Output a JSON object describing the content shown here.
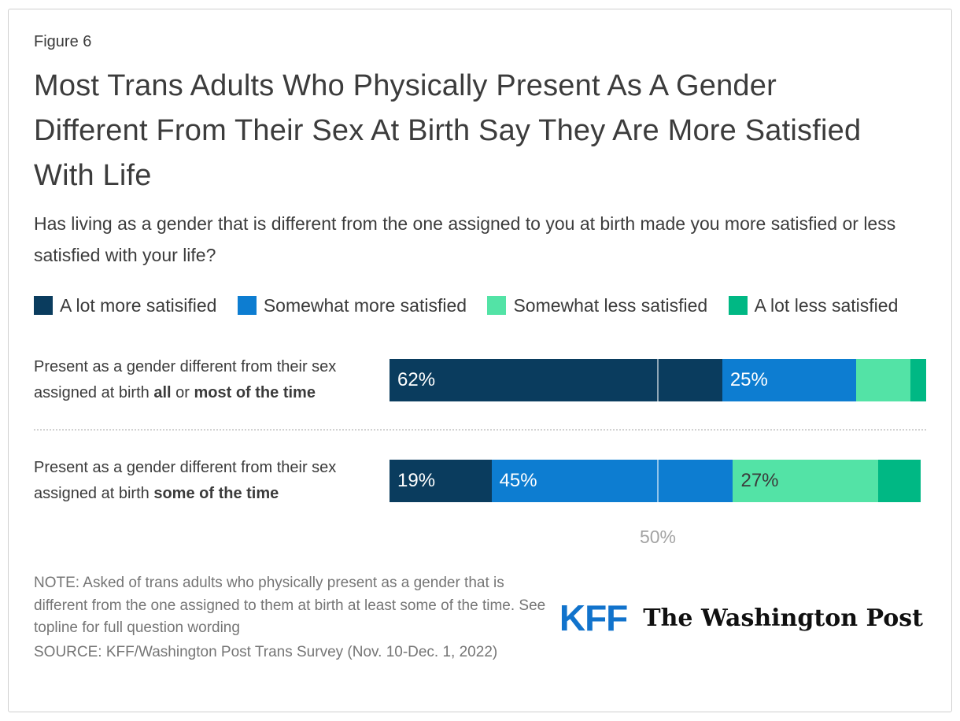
{
  "figure_label": "Figure 6",
  "title": "Most Trans Adults Who Physically Present As A Gender Different From Their Sex At Birth Say They Are More Satisfied With Life",
  "subtitle": "Has living as a gender that is different from the one assigned to you at birth made you more satisfied or less satisfied with your life?",
  "colors": {
    "a_lot_more": "#0a3c5e",
    "somewhat_more": "#0d7dd1",
    "somewhat_less": "#53e3a6",
    "a_lot_less": "#00b884",
    "kff_blue": "#1173cc",
    "gridline": "rgba(255,255,255,0.55)",
    "axis_label_gray": "#a3a3a3",
    "note_gray": "#757575"
  },
  "legend": [
    {
      "label": "A lot more satisified",
      "color": "#0a3c5e"
    },
    {
      "label": "Somewhat more satisfied",
      "color": "#0d7dd1"
    },
    {
      "label": "Somewhat less satisfied",
      "color": "#53e3a6"
    },
    {
      "label": "A lot less satisfied",
      "color": "#00b884"
    }
  ],
  "chart_data": {
    "type": "bar",
    "orientation": "horizontal",
    "stacked": true,
    "xlim": [
      0,
      100
    ],
    "gridline_at": 50,
    "axis_tick_label": "50%",
    "legend_position": "top",
    "categories": [
      "Present as a gender different from their sex assigned at birth all or most of the time",
      "Present as a gender different from their sex assigned at birth some of the time"
    ],
    "series": [
      {
        "name": "A lot more satisified",
        "color": "#0a3c5e",
        "values": [
          62,
          19
        ]
      },
      {
        "name": "Somewhat more satisfied",
        "color": "#0d7dd1",
        "values": [
          25,
          45
        ]
      },
      {
        "name": "Somewhat less satisfied",
        "color": "#53e3a6",
        "values": [
          10,
          27
        ]
      },
      {
        "name": "A lot less satisfied",
        "color": "#00b884",
        "values": [
          3,
          8
        ]
      }
    ],
    "rows": [
      {
        "label_parts": [
          {
            "text": "Present as a gender different from their sex assigned at birth ",
            "bold": false
          },
          {
            "text": "all",
            "bold": true
          },
          {
            "text": " or ",
            "bold": false
          },
          {
            "text": "most of the time",
            "bold": true
          }
        ],
        "segments": [
          {
            "name": "a-lot-more-satisfied",
            "value": 62,
            "label": "62%",
            "color": "#0a3c5e",
            "label_color": "#ffffff"
          },
          {
            "name": "somewhat-more-satisfied",
            "value": 25,
            "label": "25%",
            "color": "#0d7dd1",
            "label_color": "#ffffff"
          },
          {
            "name": "somewhat-less-satisfied",
            "value": 10,
            "label": "",
            "color": "#53e3a6",
            "label_color": "#3b3b3b"
          },
          {
            "name": "a-lot-less-satisfied",
            "value": 3,
            "label": "",
            "color": "#00b884",
            "label_color": "#ffffff"
          }
        ]
      },
      {
        "label_parts": [
          {
            "text": "Present as a gender different from their sex assigned at birth ",
            "bold": false
          },
          {
            "text": "some of the time",
            "bold": true
          }
        ],
        "segments": [
          {
            "name": "a-lot-more-satisfied",
            "value": 19,
            "label": "19%",
            "color": "#0a3c5e",
            "label_color": "#ffffff"
          },
          {
            "name": "somewhat-more-satisfied",
            "value": 45,
            "label": "45%",
            "color": "#0d7dd1",
            "label_color": "#ffffff"
          },
          {
            "name": "somewhat-less-satisfied",
            "value": 27,
            "label": "27%",
            "color": "#53e3a6",
            "label_color": "#3b3b3b"
          },
          {
            "name": "a-lot-less-satisfied",
            "value": 8,
            "label": "",
            "color": "#00b884",
            "label_color": "#ffffff"
          }
        ]
      }
    ]
  },
  "footer": {
    "note": "NOTE: Asked of trans adults who physically present as a gender that is different from the one assigned to them at birth at least some of the time. See topline for full question wording",
    "source": "SOURCE: KFF/Washington Post Trans Survey (Nov. 10-Dec. 1, 2022)",
    "logo_kff": "KFF",
    "logo_wapo": "The Washington Post"
  }
}
